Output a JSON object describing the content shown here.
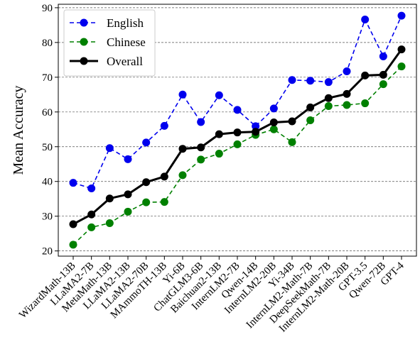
{
  "chart_data": {
    "type": "line",
    "title": "",
    "xlabel": "",
    "ylabel": "Mean Accuracy",
    "ylim": [
      18.5,
      91
    ],
    "yticks": [
      20,
      30,
      40,
      50,
      60,
      70,
      80,
      90
    ],
    "grid": "horizontal-dashed",
    "legend_position": "top-left",
    "categories": [
      "WizardMath-13B",
      "LLaMA2-7B",
      "MetaMath-13B",
      "LLaMA2-13B",
      "LLaMA2-70B",
      "MAmmoTH-13B",
      "Yi-6B",
      "ChatGLM3-6B",
      "Baichuan2-13B",
      "InternLM2-7B",
      "Qwen-14B",
      "InternLM2-20B",
      "Yi-34B",
      "InternLM2-Math-7B",
      "DeepSeekMath-7B",
      "InternLM2-Math-20B",
      "GPT-3.5",
      "Qwen-72B",
      "GPT-4"
    ],
    "series": [
      {
        "name": "English",
        "color": "#0000ee",
        "style": "dashed",
        "values": [
          39.6,
          38.0,
          49.6,
          46.4,
          51.2,
          56.0,
          65.0,
          57.1,
          64.8,
          60.6,
          55.9,
          61.0,
          69.2,
          69.0,
          68.6,
          71.7,
          86.6,
          76.0,
          87.7
        ]
      },
      {
        "name": "Chinese",
        "color": "#008000",
        "style": "dashed",
        "values": [
          21.8,
          26.8,
          28.0,
          31.3,
          34.0,
          34.1,
          41.8,
          46.3,
          48.0,
          50.7,
          53.4,
          55.0,
          51.3,
          57.6,
          61.7,
          62.0,
          62.5,
          68.0,
          73.1
        ]
      },
      {
        "name": "Overall",
        "color": "#000000",
        "style": "solid",
        "values": [
          27.7,
          30.5,
          35.1,
          36.3,
          39.8,
          41.4,
          49.4,
          49.8,
          53.6,
          54.1,
          54.3,
          57.0,
          57.3,
          61.3,
          64.0,
          65.2,
          70.5,
          70.7,
          78.0
        ]
      }
    ]
  }
}
